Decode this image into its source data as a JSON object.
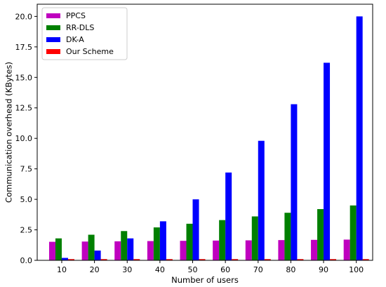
{
  "chart_data": {
    "type": "bar",
    "title": "",
    "xlabel": "Number of users",
    "ylabel": "Communication overhead (KBytes)",
    "categories": [
      "10",
      "20",
      "30",
      "40",
      "50",
      "60",
      "70",
      "80",
      "90",
      "100"
    ],
    "ylim": [
      0,
      21
    ],
    "yticks": [
      "0.0",
      "2.5",
      "5.0",
      "7.5",
      "10.0",
      "12.5",
      "15.0",
      "17.5",
      "20.0"
    ],
    "grid": false,
    "legend_position": "top-left",
    "series": [
      {
        "name": "PPCS",
        "color": "#bf00bf",
        "values": [
          1.52,
          1.54,
          1.56,
          1.58,
          1.6,
          1.62,
          1.64,
          1.66,
          1.68,
          1.7
        ]
      },
      {
        "name": "RR-DLS",
        "color": "#008000",
        "values": [
          1.8,
          2.1,
          2.4,
          2.7,
          3.0,
          3.3,
          3.6,
          3.9,
          4.2,
          4.5
        ]
      },
      {
        "name": "DK-A",
        "color": "#0000ff",
        "values": [
          0.2,
          0.8,
          1.8,
          3.2,
          5.0,
          7.2,
          9.8,
          12.8,
          16.2,
          20.0
        ]
      },
      {
        "name": "Our Scheme",
        "color": "#ff0000",
        "values": [
          0.1,
          0.1,
          0.1,
          0.1,
          0.1,
          0.1,
          0.1,
          0.1,
          0.1,
          0.1
        ]
      }
    ]
  }
}
